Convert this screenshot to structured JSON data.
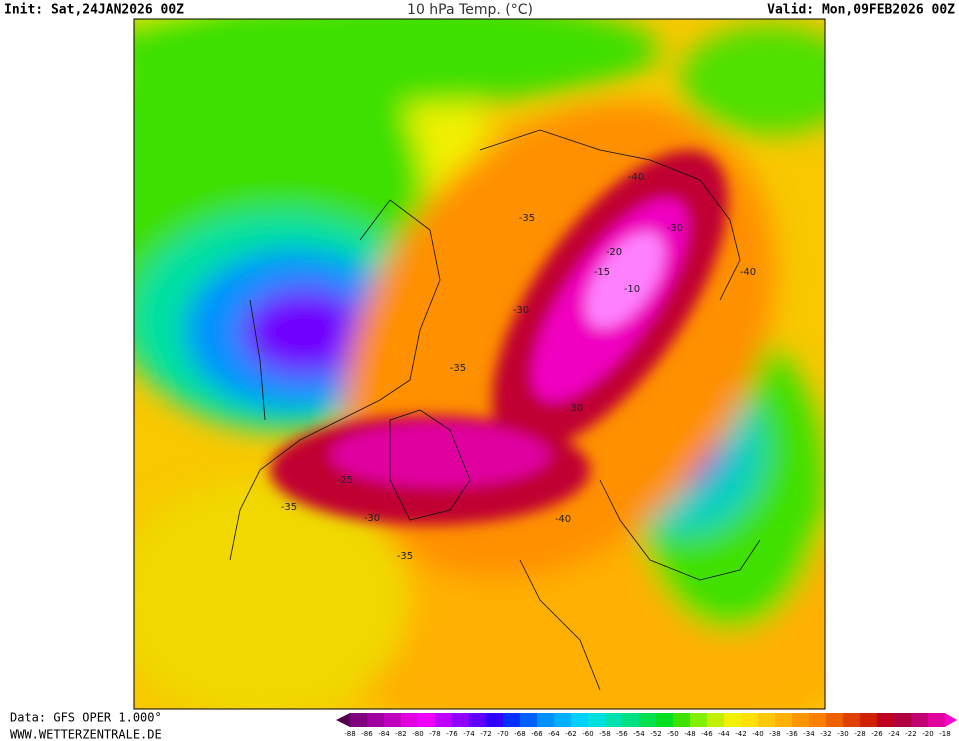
{
  "header": {
    "init": "Init: Sat,24JAN2026 00Z",
    "title": "10 hPa Temp. (°C)",
    "valid": "Valid: Mon,09FEB2026 00Z"
  },
  "footer": {
    "source": "Data: GFS OPER 1.000°",
    "website": "WWW.WETTERZENTRALE.DE"
  },
  "map": {
    "contour_labels": [
      -40,
      -35,
      -30,
      -20,
      -15,
      -10,
      -40,
      -30,
      -35,
      -30,
      -25,
      -35,
      -30,
      -40,
      -35
    ]
  },
  "legend": {
    "labels": [
      -88,
      -86,
      -84,
      -82,
      -80,
      -78,
      -76,
      -74,
      -72,
      -70,
      -68,
      -66,
      -64,
      -62,
      -60,
      -58,
      -56,
      -54,
      -52,
      -50,
      -48,
      -46,
      -44,
      -42,
      -40,
      -38,
      -36,
      -34,
      -32,
      -30,
      -28,
      -26,
      -24,
      -22,
      -20,
      -18
    ],
    "colors": [
      "#500050",
      "#800080",
      "#a000a0",
      "#c000c0",
      "#e000e0",
      "#f000ff",
      "#c000ff",
      "#9000ff",
      "#6000ff",
      "#3000ff",
      "#0030ff",
      "#0060ff",
      "#0090ff",
      "#00b0ff",
      "#00d0ff",
      "#00e0e0",
      "#00e0b0",
      "#00e080",
      "#00e050",
      "#00e020",
      "#40e000",
      "#80f000",
      "#c0f000",
      "#f0f000",
      "#ffe000",
      "#ffc800",
      "#ffb000",
      "#ff9800",
      "#ff8000",
      "#f06000",
      "#e04000",
      "#d02000",
      "#c00020",
      "#b00040",
      "#c00070",
      "#e000a0",
      "#ff00d0"
    ]
  }
}
